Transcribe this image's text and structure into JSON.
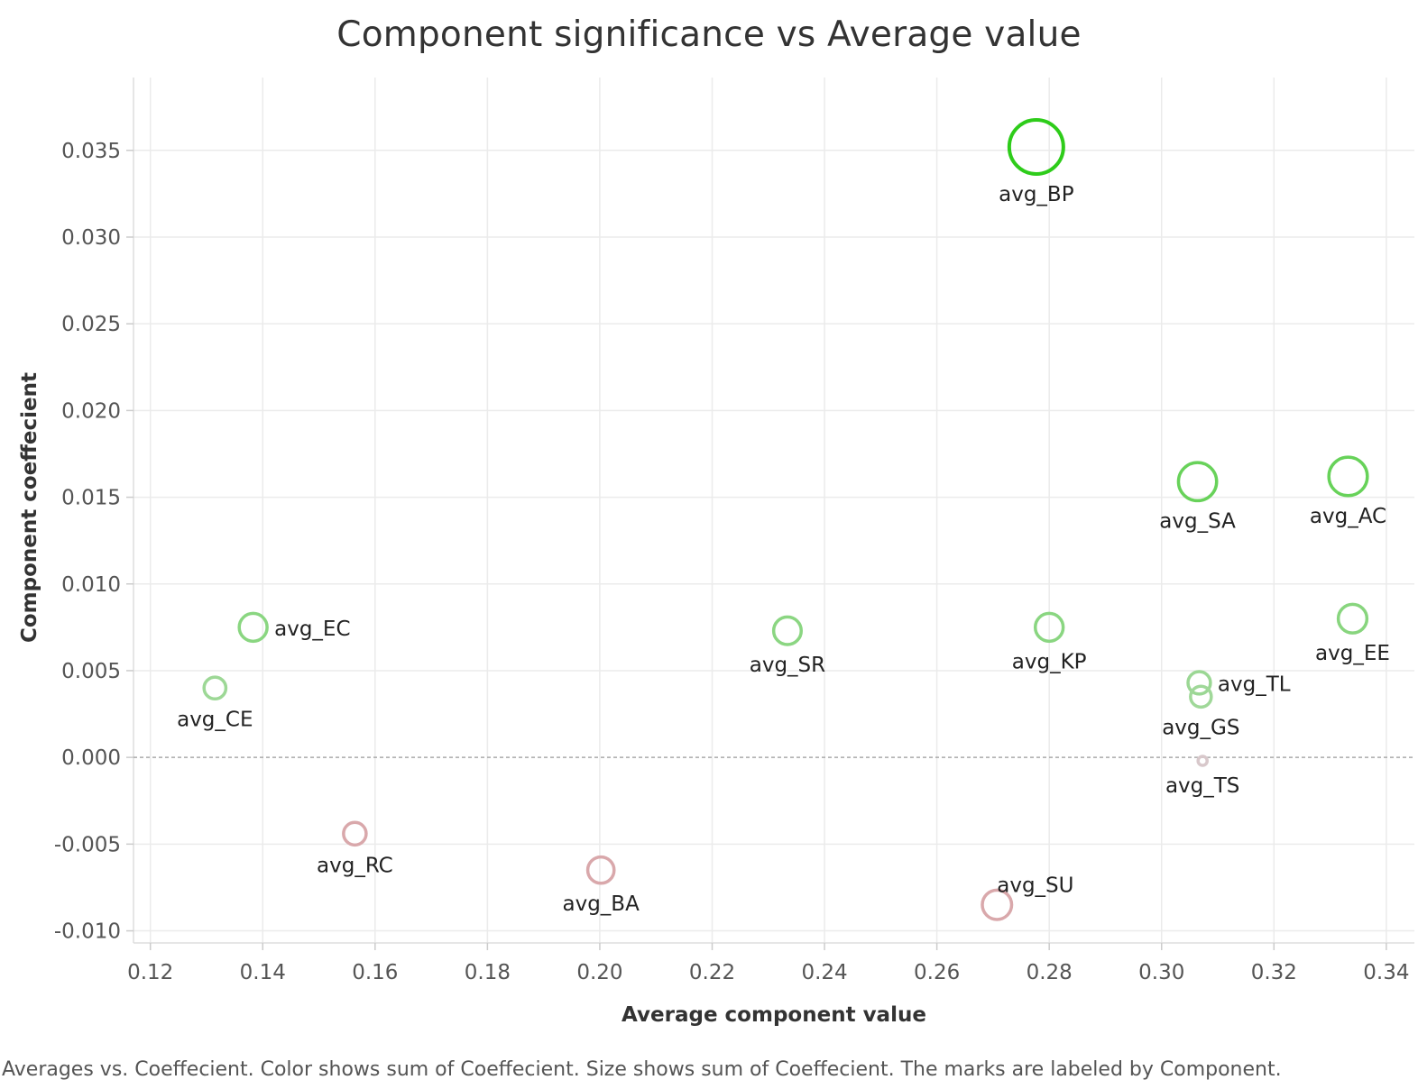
{
  "chart_data": {
    "type": "scatter",
    "title": "Component significance vs  Average value",
    "xlabel": "Average component value",
    "ylabel": "Component coeffecient",
    "caption": "Averages vs. Coeffecient.  Color shows sum of Coeffecient.  Size shows sum of Coeffecient.  The marks are labeled by Component.",
    "xlim": [
      0.117,
      0.345
    ],
    "ylim": [
      -0.0107,
      0.0392
    ],
    "x_ticks": [
      "0.12",
      "0.14",
      "0.16",
      "0.18",
      "0.20",
      "0.22",
      "0.24",
      "0.26",
      "0.28",
      "0.30",
      "0.32",
      "0.34"
    ],
    "y_ticks": [
      "0.035",
      "0.030",
      "0.025",
      "0.020",
      "0.015",
      "0.010",
      "0.005",
      "0.000",
      "-0.005",
      "-0.010"
    ],
    "grid": true,
    "zero_line": true,
    "colors": {
      "positive_max": "#2ecc1a",
      "positive_min": "#c6dcc4",
      "negative": "#d9a8ab",
      "grid": "#ebebeb",
      "zero_line": "#aaaaaa"
    },
    "points": [
      {
        "label": "avg_BP",
        "x": 0.2777,
        "y": 0.0352,
        "label_pos": "below"
      },
      {
        "label": "avg_SA",
        "x": 0.3064,
        "y": 0.0159,
        "label_pos": "below"
      },
      {
        "label": "avg_AC",
        "x": 0.3332,
        "y": 0.0162,
        "label_pos": "below"
      },
      {
        "label": "avg_EE",
        "x": 0.334,
        "y": 0.008,
        "label_pos": "below"
      },
      {
        "label": "avg_EC",
        "x": 0.1383,
        "y": 0.0075,
        "label_pos": "right"
      },
      {
        "label": "avg_SR",
        "x": 0.2334,
        "y": 0.0073,
        "label_pos": "below"
      },
      {
        "label": "avg_KP",
        "x": 0.28,
        "y": 0.0075,
        "label_pos": "below"
      },
      {
        "label": "avg_CE",
        "x": 0.1315,
        "y": 0.004,
        "label_pos": "below"
      },
      {
        "label": "avg_TL",
        "x": 0.3067,
        "y": 0.0043,
        "label_pos": "right"
      },
      {
        "label": "avg_GS",
        "x": 0.307,
        "y": 0.0035,
        "label_pos": "below"
      },
      {
        "label": "avg_TS",
        "x": 0.3073,
        "y": -0.0002,
        "label_pos": "below"
      },
      {
        "label": "avg_RC",
        "x": 0.1564,
        "y": -0.0044,
        "label_pos": "below"
      },
      {
        "label": "avg_BA",
        "x": 0.2002,
        "y": -0.0065,
        "label_pos": "below"
      },
      {
        "label": "avg_SU",
        "x": 0.2707,
        "y": -0.0085,
        "label_pos": "above-right"
      }
    ]
  }
}
